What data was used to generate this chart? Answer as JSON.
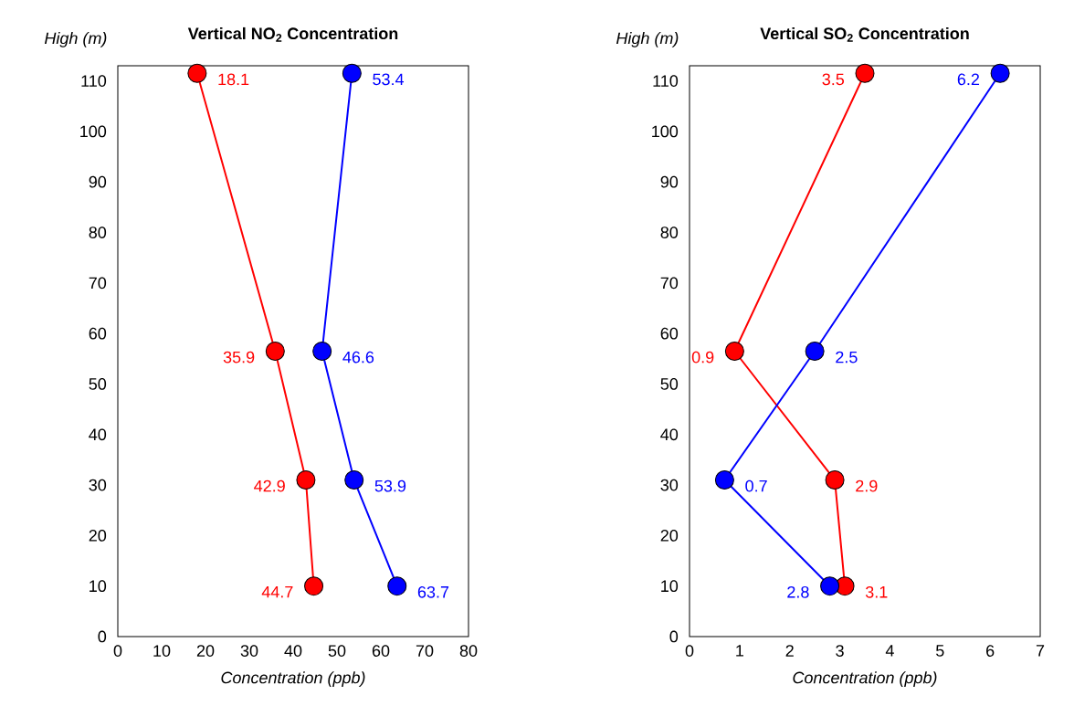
{
  "chart_data": [
    {
      "type": "line",
      "title": "Vertical NO$_{2}$ Concentration",
      "xlabel": "Concentration (ppb)",
      "ylabel": "High (m)",
      "series": [
        {
          "color": "#ff0000",
          "x": [
            18.1,
            35.9,
            42.9,
            44.7
          ],
          "values": [
            111.5,
            56.5,
            31,
            10
          ]
        },
        {
          "color": "#0000ff",
          "x": [
            53.4,
            46.6,
            53.9,
            63.7
          ],
          "values": [
            111.5,
            56.5,
            31,
            10
          ]
        }
      ],
      "xlim": [
        0,
        80
      ],
      "xticks": [
        0,
        10,
        20,
        30,
        40,
        50,
        60,
        70,
        80
      ],
      "ylim": [
        0,
        113
      ],
      "yticks": [
        0,
        10,
        20,
        30,
        40,
        50,
        60,
        70,
        80,
        90,
        100,
        110
      ],
      "marker": "circle",
      "line_style": "solid",
      "grid": false,
      "annotations": [
        {
          "text": "18.1",
          "x": 18.1,
          "y": 111.5
        },
        {
          "text": "35.9",
          "x": 35.9,
          "y": 56.5
        },
        {
          "text": "42.9",
          "x": 42.9,
          "y": 31
        },
        {
          "text": "44.7",
          "x": 44.7,
          "y": 10
        },
        {
          "text": "53.4",
          "x": 53.4,
          "y": 111.5
        },
        {
          "text": "46.6",
          "x": 46.6,
          "y": 56.5
        },
        {
          "text": "53.9",
          "x": 53.9,
          "y": 31
        },
        {
          "text": "63.7",
          "x": 63.7,
          "y": 10
        }
      ]
    },
    {
      "type": "line",
      "title": "Vertical SO$_{2}$ Concentration",
      "xlabel": "Concentration (ppb)",
      "ylabel": "High (m)",
      "series": [
        {
          "color": "#ff0000",
          "x": [
            3.5,
            0.9,
            2.9,
            3.1
          ],
          "values": [
            111.5,
            56.5,
            31,
            10
          ]
        },
        {
          "color": "#0000ff",
          "x": [
            6.2,
            2.5,
            0.7,
            2.8
          ],
          "values": [
            111.5,
            56.5,
            31,
            10
          ]
        }
      ],
      "xlim": [
        0,
        7
      ],
      "xticks": [
        0,
        1,
        2,
        3,
        4,
        5,
        6,
        7
      ],
      "ylim": [
        0,
        113
      ],
      "yticks": [
        0,
        10,
        20,
        30,
        40,
        50,
        60,
        70,
        80,
        90,
        100,
        110
      ],
      "marker": "circle",
      "line_style": "solid",
      "grid": false,
      "annotations": [
        {
          "text": "3.5",
          "x": 3.5,
          "y": 111.5
        },
        {
          "text": "0.9",
          "x": 0.9,
          "y": 56.5
        },
        {
          "text": "2.9",
          "x": 2.9,
          "y": 31
        },
        {
          "text": "3.1",
          "x": 3.1,
          "y": 10
        },
        {
          "text": "6.2",
          "x": 6.2,
          "y": 111.5
        },
        {
          "text": "2.5",
          "x": 2.5,
          "y": 56.5
        },
        {
          "text": "0.7",
          "x": 0.7,
          "y": 31
        },
        {
          "text": "2.8",
          "x": 2.8,
          "y": 10
        }
      ]
    }
  ]
}
